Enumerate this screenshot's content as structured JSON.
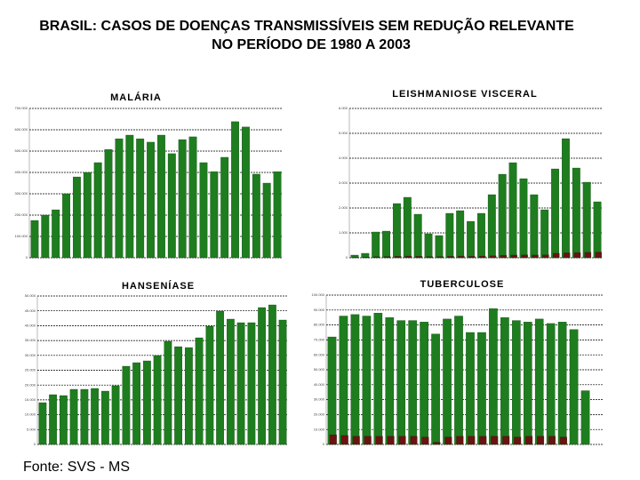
{
  "title": "BRASIL: CASOS DE DOENÇAS TRANSMISSÍVEIS SEM REDUÇÃO RELEVANTE",
  "subtitle": "NO PERÍODO DE 1980 A 2003",
  "source": "Fonte: SVS - MS",
  "chart_data": [
    {
      "type": "bar",
      "title": "MALÁRIA",
      "grid": true,
      "ylim": [
        0,
        700000
      ],
      "yticks": [
        0,
        {
          "value": 100000,
          "label": "100.000"
        },
        {
          "value": 200000,
          "label": "200.000"
        },
        {
          "value": 300000,
          "label": "300.000"
        },
        {
          "value": 400000,
          "label": "400.000"
        },
        {
          "value": 500000,
          "label": "500.000"
        },
        {
          "value": 600000,
          "label": "600.000"
        },
        {
          "value": 700000,
          "label": "700.000"
        }
      ],
      "series": [
        {
          "color": "#1e7d1e",
          "values": [
            175000,
            200000,
            225000,
            300000,
            379000,
            400000,
            446000,
            508000,
            558000,
            575000,
            558000,
            542000,
            575000,
            488000,
            554000,
            567000,
            446000,
            404000,
            471000,
            638000,
            613000,
            392000,
            350000,
            404000
          ]
        }
      ]
    },
    {
      "type": "bar",
      "title": "LEISHMANIOSE VISCERAL",
      "grid": true,
      "ylim": [
        0,
        6000
      ],
      "yticks": [
        0,
        {
          "value": 1000,
          "label": "1.000"
        },
        {
          "value": 2000,
          "label": "2.000"
        },
        {
          "value": 3000,
          "label": "3.000"
        },
        {
          "value": 4000,
          "label": "4.000"
        },
        {
          "value": 5000,
          "label": "5.000"
        },
        {
          "value": 6000,
          "label": "6.000"
        }
      ],
      "series": [
        {
          "color": "#1e7d1e",
          "values": [
            107,
            179,
            1036,
            1071,
            2179,
            2429,
            1750,
            964,
            893,
            1786,
            1893,
            1464,
            1786,
            2536,
            3357,
            3821,
            3179,
            2536,
            1929,
            3571,
            4786,
            3607,
            3036,
            2250
          ]
        },
        {
          "color": "#6b1212",
          "values": [
            20,
            30,
            40,
            50,
            60,
            70,
            60,
            50,
            50,
            60,
            70,
            60,
            70,
            80,
            100,
            110,
            120,
            110,
            120,
            180,
            200,
            210,
            220,
            230
          ]
        }
      ]
    },
    {
      "type": "bar",
      "title": "HANSENÍASE",
      "grid": true,
      "ylim": [
        0,
        50000
      ],
      "yticks": [
        0,
        {
          "value": 5000,
          "label": "5.000"
        },
        {
          "value": 10000,
          "label": "10.000"
        },
        {
          "value": 15000,
          "label": "15.000"
        },
        {
          "value": 20000,
          "label": "20.000"
        },
        {
          "value": 25000,
          "label": "25.000"
        },
        {
          "value": 30000,
          "label": "30.000"
        },
        {
          "value": 35000,
          "label": "35.000"
        },
        {
          "value": 40000,
          "label": "40.000"
        },
        {
          "value": 45000,
          "label": "45.000"
        },
        {
          "value": 50000,
          "label": "50.000"
        }
      ],
      "series": [
        {
          "color": "#1e7d1e",
          "values": [
            14072,
            16766,
            16467,
            18563,
            18563,
            18862,
            17964,
            19760,
            26347,
            27545,
            28144,
            29940,
            34731,
            32934,
            32635,
            35928,
            39820,
            44910,
            42216,
            41018,
            41018,
            46108,
            47006,
            41916
          ]
        }
      ]
    },
    {
      "type": "bar",
      "title": "TUBERCULOSE",
      "grid": true,
      "ylim": [
        0,
        100000
      ],
      "yticks": [
        0,
        {
          "value": 10000,
          "label": "10.000"
        },
        {
          "value": 20000,
          "label": "20.000"
        },
        {
          "value": 30000,
          "label": "30.000"
        },
        {
          "value": 40000,
          "label": "40.000"
        },
        {
          "value": 50000,
          "label": "50.000"
        },
        {
          "value": 60000,
          "label": "60.000"
        },
        {
          "value": 70000,
          "label": "70.000"
        },
        {
          "value": 80000,
          "label": "80.000"
        },
        {
          "value": 90000,
          "label": "90.000"
        },
        {
          "value": 100000,
          "label": "100.000"
        }
      ],
      "series": [
        {
          "color": "#1e7d1e",
          "values": [
            72000,
            86000,
            87000,
            86000,
            88000,
            85000,
            83000,
            83000,
            82000,
            74000,
            84000,
            86000,
            75000,
            75000,
            91000,
            85000,
            83000,
            82000,
            84000,
            81000,
            82000,
            77000,
            36000,
            0
          ]
        },
        {
          "color": "#6b1212",
          "values": [
            6500,
            6000,
            5500,
            5500,
            5500,
            5500,
            5500,
            5500,
            5000,
            1500,
            5000,
            5500,
            5500,
            5500,
            5500,
            5500,
            5000,
            5500,
            5500,
            5500,
            5000,
            0,
            0,
            0
          ]
        }
      ]
    }
  ]
}
